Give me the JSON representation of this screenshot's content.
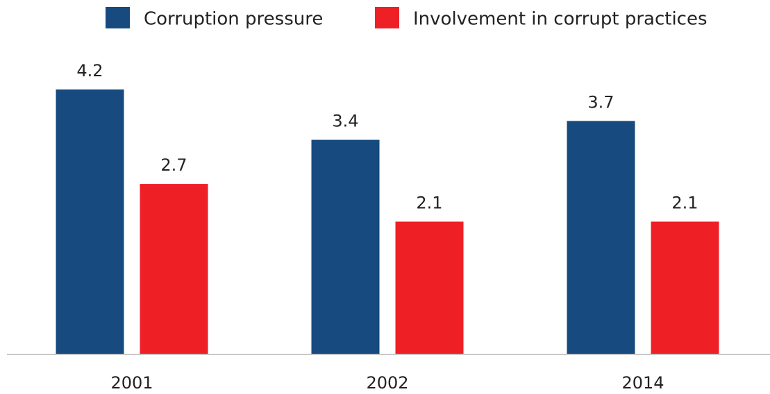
{
  "chart_data": {
    "type": "bar",
    "categories": [
      "2001",
      "2002",
      "2014"
    ],
    "series": [
      {
        "name": "Corruption pressure",
        "color": "#174a7e",
        "values": [
          4.2,
          3.4,
          3.7
        ]
      },
      {
        "name": "Involvement in corrupt practices",
        "color": "#ee2026",
        "values": [
          2.7,
          2.1,
          2.1
        ]
      }
    ]
  }
}
